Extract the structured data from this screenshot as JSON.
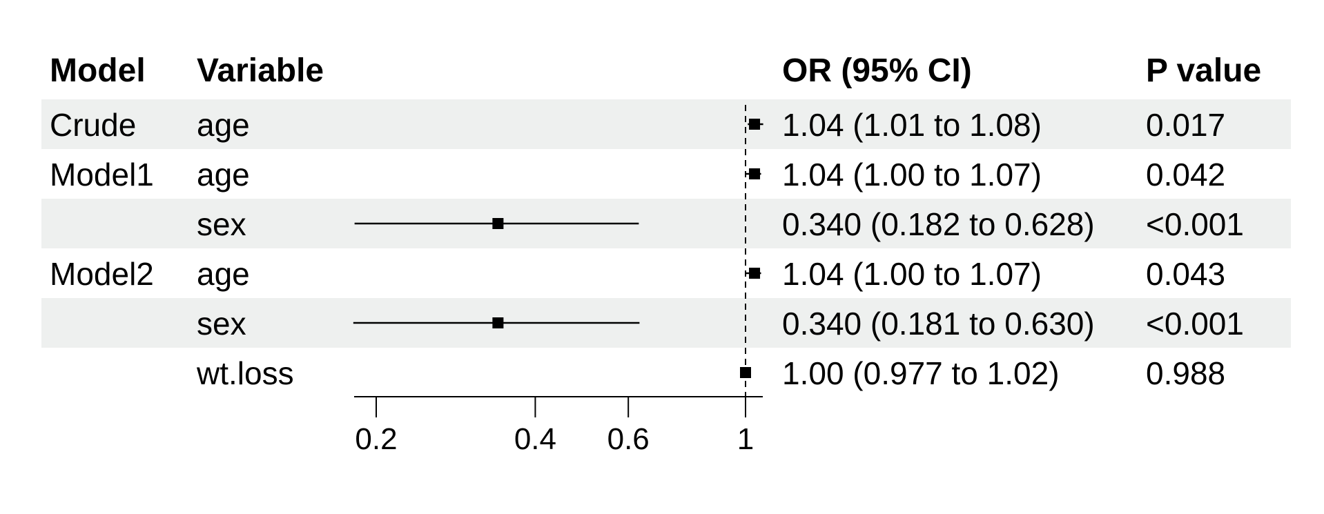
{
  "chart_data": {
    "type": "forest",
    "headers": {
      "model": "Model",
      "variable": "Variable",
      "or_ci": "OR (95% CI)",
      "p_value": "P value"
    },
    "x_scale": "log",
    "x_range": [
      0.18,
      1.045
    ],
    "x_ticks": [
      {
        "value": 0.2,
        "label": "0.2"
      },
      {
        "value": 0.4,
        "label": "0.4"
      },
      {
        "value": 0.6,
        "label": "0.6"
      },
      {
        "value": 1,
        "label": "1"
      }
    ],
    "reference_line": 1,
    "row_shading": [
      "#eef0ef",
      "#ffffff"
    ],
    "rows": [
      {
        "model": "Crude",
        "variable": "age",
        "or": 1.04,
        "lower": 1.01,
        "upper": 1.08,
        "or_ci": "1.04 (1.01 to 1.08)",
        "p": "0.017"
      },
      {
        "model": "Model1",
        "variable": "age",
        "or": 1.04,
        "lower": 1.0,
        "upper": 1.07,
        "or_ci": "1.04 (1.00 to 1.07)",
        "p": "0.042"
      },
      {
        "model": "",
        "variable": "sex",
        "or": 0.34,
        "lower": 0.182,
        "upper": 0.628,
        "or_ci": "0.340 (0.182 to 0.628)",
        "p": "<0.001"
      },
      {
        "model": "Model2",
        "variable": "age",
        "or": 1.04,
        "lower": 1.0,
        "upper": 1.07,
        "or_ci": "1.04 (1.00 to 1.07)",
        "p": "0.043"
      },
      {
        "model": "",
        "variable": "sex",
        "or": 0.34,
        "lower": 0.181,
        "upper": 0.63,
        "or_ci": "0.340 (0.181 to 0.630)",
        "p": "<0.001"
      },
      {
        "model": "",
        "variable": "wt.loss",
        "or": 1.0,
        "lower": 0.977,
        "upper": 1.02,
        "or_ci": "1.00 (0.977 to 1.02)",
        "p": "0.988"
      }
    ]
  }
}
